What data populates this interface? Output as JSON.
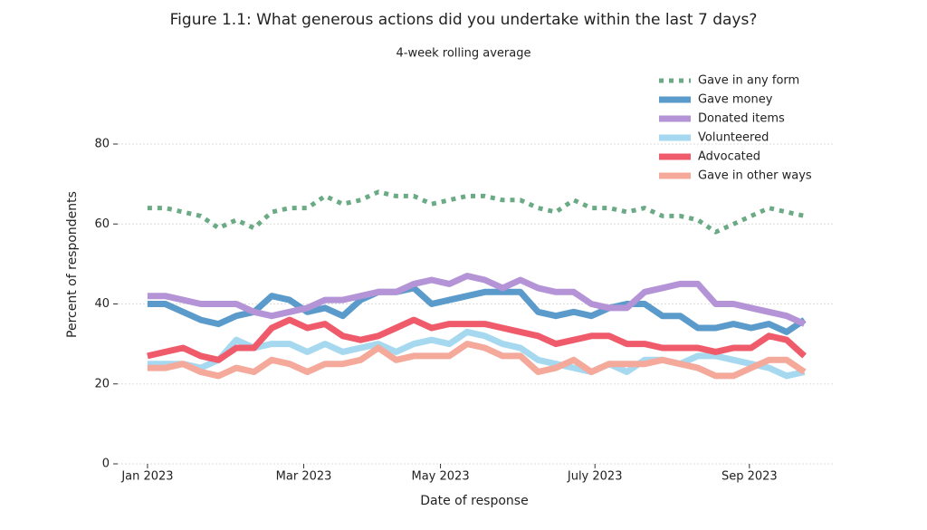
{
  "chart_data": {
    "type": "line",
    "title": "Figure 1.1: What generous actions did you undertake within the last 7 days?",
    "subtitle": "4-week rolling average",
    "x_label": "Date of response",
    "y_label": "Percent of respondents",
    "x": [
      0,
      1,
      2,
      3,
      4,
      5,
      6,
      7,
      8,
      9,
      10,
      11,
      12,
      13,
      14,
      15,
      16,
      17,
      18,
      19,
      20,
      21,
      22,
      23,
      24,
      25,
      26,
      27,
      28,
      29,
      30,
      31,
      32,
      33,
      34,
      35,
      36,
      37
    ],
    "xlim": [
      -1.68,
      38.6
    ],
    "xticks": [
      {
        "value": 0,
        "label": "Jan 2023"
      },
      {
        "value": 8.8,
        "label": "Mar 2023"
      },
      {
        "value": 16.5,
        "label": "May 2023"
      },
      {
        "value": 25.2,
        "label": "July 2023"
      },
      {
        "value": 33.9,
        "label": "Sep 2023"
      }
    ],
    "ylim": [
      0,
      80
    ],
    "yticks": [
      0,
      20,
      40,
      60,
      80
    ],
    "grid": true,
    "legend": "upper right",
    "series": [
      {
        "name": "Gave in any form",
        "color": "#6aaa84",
        "line_style": "dotted",
        "values": [
          64,
          64,
          63,
          62,
          59,
          61,
          59,
          63,
          64,
          64,
          67,
          65,
          66,
          68,
          67,
          67,
          65,
          66,
          67,
          67,
          66,
          66,
          64,
          63,
          66,
          64,
          64,
          63,
          64,
          62,
          62,
          61,
          58,
          60,
          62,
          64,
          63,
          62
        ]
      },
      {
        "name": "Gave money",
        "color": "#5b9bcb",
        "line_style": "solid",
        "values": [
          40,
          40,
          38,
          36,
          35,
          37,
          38,
          42,
          41,
          38,
          39,
          37,
          41,
          43,
          43,
          44,
          40,
          41,
          42,
          43,
          43,
          43,
          38,
          37,
          38,
          37,
          39,
          40,
          40,
          37,
          37,
          34,
          34,
          35,
          34,
          35,
          33,
          36
        ]
      },
      {
        "name": "Donated items",
        "color": "#b494d6",
        "line_style": "solid",
        "values": [
          42,
          42,
          41,
          40,
          40,
          40,
          38,
          37,
          38,
          39,
          41,
          41,
          42,
          43,
          43,
          45,
          46,
          45,
          47,
          46,
          44,
          46,
          44,
          43,
          43,
          40,
          39,
          39,
          43,
          44,
          45,
          45,
          40,
          40,
          39,
          38,
          37,
          35
        ]
      },
      {
        "name": "Volunteered",
        "color": "#a6d9ef",
        "line_style": "solid",
        "values": [
          25,
          25,
          25,
          24,
          26,
          31,
          29,
          30,
          30,
          28,
          30,
          28,
          29,
          30,
          28,
          30,
          31,
          30,
          33,
          32,
          30,
          29,
          26,
          25,
          24,
          23,
          25,
          23,
          26,
          26,
          25,
          27,
          27,
          26,
          25,
          24,
          22,
          23
        ]
      },
      {
        "name": "Advocated",
        "color": "#ef5b6b",
        "line_style": "solid",
        "values": [
          27,
          28,
          29,
          27,
          26,
          29,
          29,
          34,
          36,
          34,
          35,
          32,
          31,
          32,
          34,
          36,
          34,
          35,
          35,
          35,
          34,
          33,
          32,
          30,
          31,
          32,
          32,
          30,
          30,
          29,
          29,
          29,
          28,
          29,
          29,
          32,
          31,
          27
        ]
      },
      {
        "name": "Gave in other ways",
        "color": "#f4a99b",
        "line_style": "solid",
        "values": [
          24,
          24,
          25,
          23,
          22,
          24,
          23,
          26,
          25,
          23,
          25,
          25,
          26,
          29,
          26,
          27,
          27,
          27,
          30,
          29,
          27,
          27,
          23,
          24,
          26,
          23,
          25,
          25,
          25,
          26,
          25,
          24,
          22,
          22,
          24,
          26,
          26,
          23
        ]
      }
    ]
  }
}
